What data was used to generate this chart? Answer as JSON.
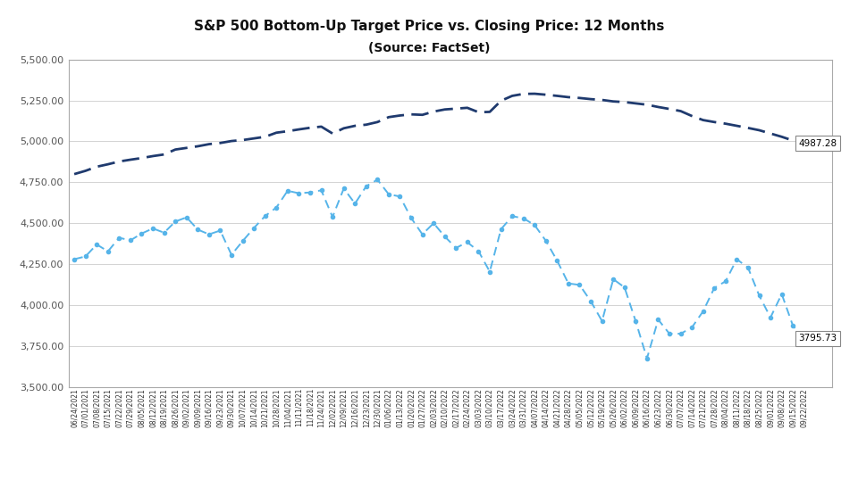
{
  "title": "S&P 500 Bottom-Up Target Price vs. Closing Price: 12 Months",
  "subtitle": "(Source: FactSet)",
  "ylim": [
    3500,
    5500
  ],
  "yticks": [
    3500,
    3750,
    4000,
    4250,
    4500,
    4750,
    5000,
    5250,
    5500
  ],
  "closing_label": "3795.73",
  "target_label": "4987.28",
  "closing_color": "#56B4E9",
  "target_color": "#1F3A6E",
  "background_color": "#FFFFFF",
  "x_tick_labels": [
    "06/24/2021",
    "07/01/2021",
    "07/08/2021",
    "07/15/2021",
    "07/22/2021",
    "07/29/2021",
    "08/05/2021",
    "08/12/2021",
    "08/19/2021",
    "08/26/2021",
    "09/02/2021",
    "09/09/2021",
    "09/16/2021",
    "09/23/2021",
    "09/30/2021",
    "10/07/2021",
    "10/14/2021",
    "10/21/2021",
    "10/28/2021",
    "11/04/2021",
    "11/11/2021",
    "11/18/2021",
    "11/24/2021",
    "12/02/2021",
    "12/09/2021",
    "12/16/2021",
    "12/23/2021",
    "12/30/2021",
    "01/06/2022",
    "01/13/2022",
    "01/20/2022",
    "01/27/2022",
    "02/03/2022",
    "02/10/2022",
    "02/17/2022",
    "02/24/2022",
    "03/03/2022",
    "03/10/2022",
    "03/17/2022",
    "03/24/2022",
    "03/31/2022",
    "04/07/2022",
    "04/14/2022",
    "04/21/2022",
    "04/28/2022",
    "05/05/2022",
    "05/12/2022",
    "05/19/2022",
    "05/26/2022",
    "06/02/2022",
    "06/09/2022",
    "06/16/2022",
    "06/23/2022",
    "06/30/2022",
    "07/07/2022",
    "07/14/2022",
    "07/21/2022",
    "07/28/2022",
    "08/04/2022",
    "08/11/2022",
    "08/18/2022",
    "08/25/2022",
    "09/01/2022",
    "09/08/2022",
    "09/15/2022",
    "09/22/2022"
  ],
  "closing_prices": [
    4280,
    4297,
    4370,
    4328,
    4411,
    4395,
    4437,
    4468,
    4442,
    4510,
    4536,
    4461,
    4432,
    4455,
    4307,
    4391,
    4471,
    4544,
    4596,
    4698,
    4683,
    4688,
    4701,
    4538,
    4712,
    4620,
    4726,
    4766,
    4677,
    4663,
    4532,
    4432,
    4500,
    4418,
    4349,
    4384,
    4329,
    4204,
    4463,
    4543,
    4530,
    4488,
    4392,
    4271,
    4132,
    4123,
    4023,
    3902,
    4158,
    4108,
    3900,
    3674,
    3911,
    3825,
    3825,
    3863,
    3962,
    4105,
    4145,
    4280,
    4228,
    4057,
    3924,
    4067,
    3873,
    3796
  ],
  "target_prices": [
    4800,
    4820,
    4845,
    4860,
    4877,
    4888,
    4898,
    4910,
    4920,
    4950,
    4960,
    4970,
    4983,
    4990,
    5002,
    5008,
    5018,
    5028,
    5053,
    5062,
    5073,
    5083,
    5090,
    5048,
    5080,
    5095,
    5102,
    5118,
    5148,
    5158,
    5165,
    5162,
    5182,
    5195,
    5200,
    5205,
    5178,
    5180,
    5248,
    5278,
    5290,
    5291,
    5285,
    5278,
    5270,
    5265,
    5258,
    5253,
    5244,
    5240,
    5232,
    5224,
    5210,
    5198,
    5185,
    5155,
    5130,
    5118,
    5108,
    5095,
    5082,
    5068,
    5048,
    5028,
    5005,
    4987
  ]
}
